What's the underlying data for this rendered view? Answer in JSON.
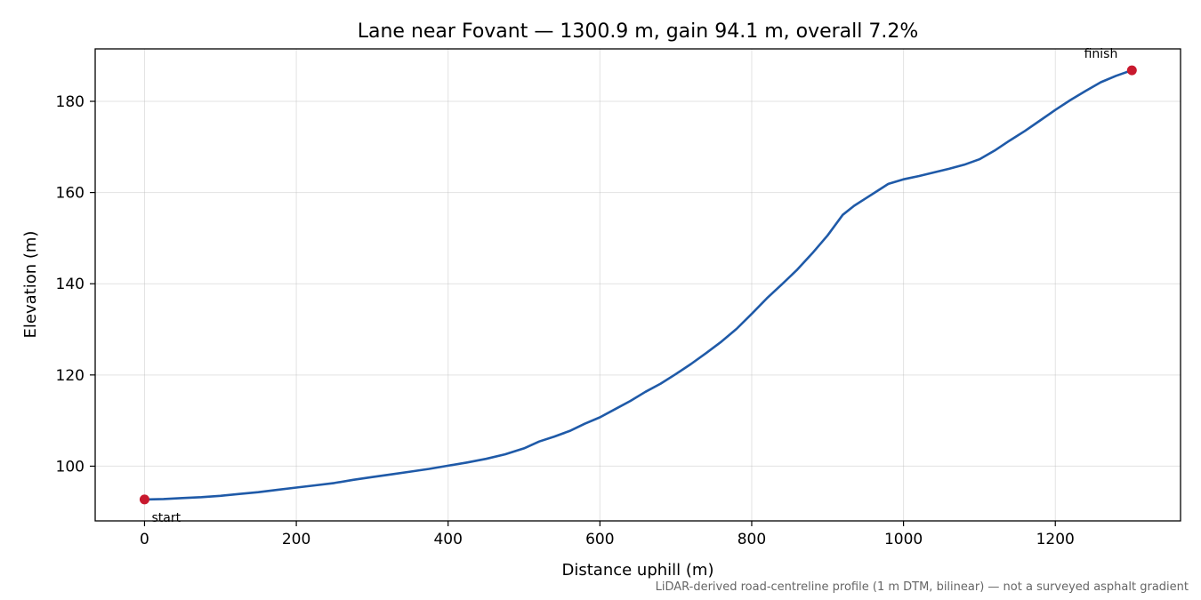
{
  "chart_data": {
    "type": "line",
    "title": "Lane near Fovant — 1300.9 m, gain 94.1 m, overall 7.2%",
    "xlabel": "Distance uphill (m)",
    "ylabel": "Elevation (m)",
    "xlim": [
      -65,
      1365
    ],
    "ylim": [
      88,
      191.5
    ],
    "xticks": [
      0,
      200,
      400,
      600,
      800,
      1000,
      1200
    ],
    "yticks": [
      100,
      120,
      140,
      160,
      180
    ],
    "grid": true,
    "footnote": "LiDAR-derived road-centreline profile (1 m DTM, bilinear) — not a surveyed asphalt gradient",
    "series": [
      {
        "color": "#1f5aa8",
        "x": [
          0,
          25,
          50,
          75,
          100,
          125,
          150,
          175,
          200,
          225,
          250,
          275,
          300,
          325,
          350,
          375,
          400,
          425,
          450,
          475,
          500,
          520,
          540,
          560,
          580,
          600,
          620,
          640,
          660,
          680,
          700,
          720,
          740,
          760,
          780,
          800,
          820,
          840,
          860,
          880,
          900,
          920,
          935,
          950,
          965,
          980,
          1000,
          1020,
          1040,
          1060,
          1080,
          1100,
          1120,
          1140,
          1160,
          1180,
          1200,
          1220,
          1240,
          1260,
          1280,
          1300.9
        ],
        "y": [
          92.7,
          92.8,
          93.0,
          93.2,
          93.5,
          93.9,
          94.3,
          94.8,
          95.3,
          95.8,
          96.3,
          97.0,
          97.6,
          98.2,
          98.8,
          99.4,
          100.1,
          100.8,
          101.6,
          102.6,
          103.9,
          105.4,
          106.5,
          107.7,
          109.3,
          110.7,
          112.5,
          114.3,
          116.3,
          118.1,
          120.2,
          122.4,
          124.8,
          127.3,
          130.1,
          133.4,
          136.8,
          139.9,
          143.1,
          146.7,
          150.6,
          155.1,
          157.1,
          158.7,
          160.3,
          161.9,
          162.9,
          163.6,
          164.4,
          165.2,
          166.1,
          167.3,
          169.2,
          171.4,
          173.5,
          175.8,
          178.1,
          180.3,
          182.3,
          184.2,
          185.6,
          186.8
        ]
      }
    ],
    "markers": [
      {
        "x": 0,
        "y": 92.7,
        "label": "start",
        "color": "#c8192e"
      },
      {
        "x": 1300.9,
        "y": 186.8,
        "label": "finish",
        "color": "#c8192e"
      }
    ]
  }
}
